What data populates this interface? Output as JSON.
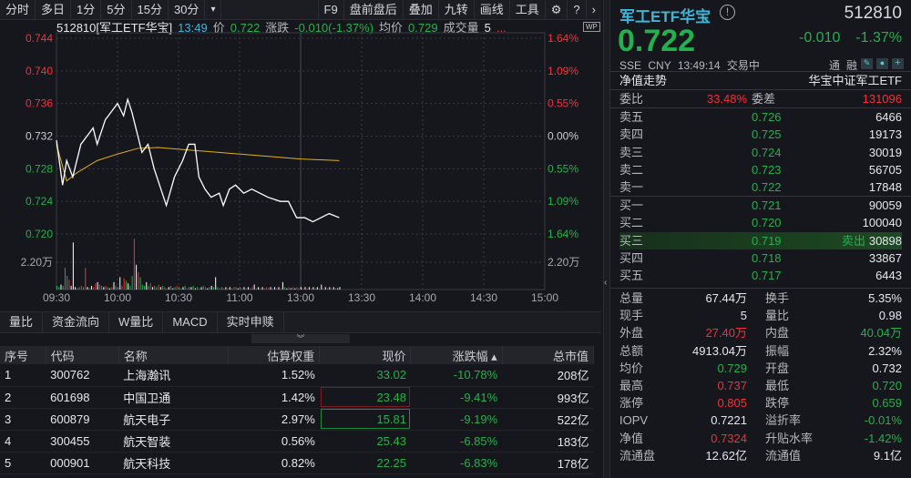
{
  "toolbar": {
    "left": [
      "分时",
      "多日",
      "1分",
      "5分",
      "15分",
      "30分"
    ],
    "dropdown": "▾",
    "right": [
      "F9",
      "盘前盘后",
      "叠加",
      "九转",
      "画线",
      "工具"
    ]
  },
  "infobar": {
    "code_name": "512810[军工ETF华宝]",
    "time": "13:49",
    "price_label": "价",
    "price": "0.722",
    "change_label": "涨跌",
    "change": "-0.010(-1.37%)",
    "avg_label": "均价",
    "avg": "0.729",
    "vol_label": "成交量",
    "vol": "5",
    "more": "...",
    "wp": "WP"
  },
  "chart_data": {
    "type": "line",
    "title": "",
    "xlabel": "",
    "ylabel": "",
    "y_ticks": [
      "0.744",
      "0.740",
      "0.736",
      "0.732",
      "0.728",
      "0.724",
      "0.720"
    ],
    "y_ticks_right": [
      "1.64%",
      "1.09%",
      "0.55%",
      "0.00%",
      "0.55%",
      "1.09%",
      "1.64%"
    ],
    "ylim": [
      0.72,
      0.744
    ],
    "prev_close": 0.732,
    "x_ticks": [
      "09:30",
      "10:00",
      "10:30",
      "11:00",
      "13:00",
      "13:30",
      "14:00",
      "14:30",
      "15:00"
    ],
    "session_minutes": 240,
    "price": {
      "t": [
        0,
        3,
        5,
        8,
        12,
        15,
        18,
        20,
        24,
        27,
        30,
        33,
        35,
        37,
        39,
        40,
        42,
        45,
        48,
        52,
        54,
        58,
        62,
        65,
        68,
        70,
        73,
        76,
        80,
        82,
        85,
        88,
        92,
        96,
        100,
        104,
        110,
        114,
        118,
        122,
        126,
        130,
        134,
        139
      ],
      "v": [
        0.7315,
        0.726,
        0.729,
        0.727,
        0.731,
        0.732,
        0.733,
        0.731,
        0.734,
        0.735,
        0.736,
        0.7345,
        0.7365,
        0.735,
        0.733,
        0.732,
        0.73,
        0.731,
        0.728,
        0.725,
        0.7235,
        0.727,
        0.729,
        0.731,
        0.731,
        0.727,
        0.7255,
        0.7245,
        0.725,
        0.7235,
        0.7255,
        0.726,
        0.725,
        0.7255,
        0.725,
        0.7245,
        0.724,
        0.724,
        0.722,
        0.722,
        0.7215,
        0.722,
        0.7225,
        0.722
      ]
    },
    "avg": {
      "t": [
        0,
        5,
        10,
        20,
        30,
        40,
        50,
        60,
        80,
        100,
        120,
        139
      ],
      "v": [
        0.731,
        0.7265,
        0.7275,
        0.729,
        0.7298,
        0.7305,
        0.7306,
        0.7304,
        0.73,
        0.7296,
        0.7292,
        0.729
      ]
    },
    "volume_label": "2.20万",
    "volume_unit": "万",
    "volume": [
      0.3,
      0.2,
      0.4,
      0.3,
      1.75,
      1.1,
      0.8,
      0.3,
      3.8,
      0.2,
      0.1,
      0.2,
      0.3,
      0.2,
      1.75,
      0.2,
      0.1,
      0.3,
      0.2,
      0.5,
      0.6,
      0.4,
      0.3,
      0.2,
      0.3,
      0.2,
      0.1,
      0.2,
      0.6,
      0.3,
      0.2,
      1.0,
      0.3,
      0.9,
      0.7,
      0.5,
      0.3,
      1.1,
      4.1,
      2.0,
      1.4,
      1.0,
      0.4,
      0.3,
      0.6,
      0.3,
      0.5,
      0.2,
      0.3,
      0.2,
      0.4,
      0.2,
      0.3,
      0.2,
      0.1,
      0.2,
      0.3,
      0.1,
      0.2,
      0.3,
      0.2,
      0.1,
      0.2,
      0.3,
      0.1,
      0.2,
      0.2,
      0.3,
      0.1,
      0.2,
      0.1,
      0.2,
      0.3,
      0.2,
      0.1,
      0.2,
      0.3,
      0.2,
      1.0,
      0.2,
      0.1,
      0.2,
      0.1,
      0.2,
      0.1,
      0.2,
      0.1,
      0.2,
      0.2,
      0.1,
      0.2,
      0.1,
      0.2,
      0.1,
      0.2,
      0.1,
      0.2,
      0.4,
      0.1,
      0.2,
      0.1,
      0.2,
      0.1,
      0.2,
      0.1,
      0.2,
      0.1,
      0.2,
      0.1,
      0.2,
      0.1,
      0.6,
      0.2,
      0.1,
      0.2,
      0.1,
      0.2,
      0.1,
      0.2,
      0.1,
      0.2,
      0.1,
      0.2,
      0.1,
      0.2,
      0.1,
      0.2,
      0.1,
      0.2,
      0.1,
      0.4,
      0.1,
      0.2,
      0.1,
      0.2,
      0.1,
      0.2,
      0.1,
      0.1,
      0.2
    ],
    "volume_dir": "ddfdddufffddudufdfuufudfudfufddfuudfddufudddfdufddufdudfdfduddfdudfdfdufdufdfdfdddufufdudfdufufdufufufdudfufufufdfufufudfufufufdfufufufufdffd"
  },
  "colors": {
    "up": "#f0313c",
    "down": "#22b14c",
    "price_line": "#ffffff",
    "avg_line": "#e0b020"
  },
  "tabs": [
    "量比",
    "资金流向",
    "W量比",
    "MACD",
    "实时申赎"
  ],
  "collapse": "︾",
  "table": {
    "headers": [
      "序号",
      "代码",
      "名称",
      "估算权重",
      "现价",
      "涨跌幅 ▴",
      "总市值"
    ],
    "rows": [
      [
        "1",
        "300762",
        "上海瀚讯",
        "1.52%",
        "33.02",
        "-10.78%",
        "208亿"
      ],
      [
        "2",
        "601698",
        "中国卫通",
        "1.42%",
        "23.48",
        "-9.41%",
        "993亿"
      ],
      [
        "3",
        "600879",
        "航天电子",
        "2.97%",
        "15.81",
        "-9.19%",
        "522亿"
      ],
      [
        "4",
        "300455",
        "航天智装",
        "0.56%",
        "25.43",
        "-6.85%",
        "183亿"
      ],
      [
        "5",
        "000901",
        "航天科技",
        "0.82%",
        "22.25",
        "-6.83%",
        "178亿"
      ]
    ]
  },
  "quote": {
    "name": "军工ETF华宝",
    "code": "512810",
    "price": "0.722",
    "change": "-0.010",
    "pct": "-1.37%",
    "exchange": "SSE",
    "currency": "CNY",
    "time": "13:49:14",
    "status": "交易中",
    "tong": "通",
    "rong": "融",
    "nav_trend": "净值走势",
    "fund_name": "华宝中证军工ETF",
    "weibi_label": "委比",
    "weibi": "33.48%",
    "weicha_label": "委差",
    "weicha": "131096",
    "asks": [
      [
        "卖五",
        "0.726",
        "6466"
      ],
      [
        "卖四",
        "0.725",
        "19173"
      ],
      [
        "卖三",
        "0.724",
        "30019"
      ],
      [
        "卖二",
        "0.723",
        "56705"
      ],
      [
        "卖一",
        "0.722",
        "17848"
      ]
    ],
    "bids": [
      [
        "买一",
        "0.721",
        "90059"
      ],
      [
        "买二",
        "0.720",
        "100040"
      ],
      [
        "买三",
        "0.719",
        "30898"
      ],
      [
        "买四",
        "0.718",
        "33867"
      ],
      [
        "买五",
        "0.717",
        "6443"
      ]
    ],
    "bid_tag": "卖出",
    "stats": [
      [
        "总量",
        "67.44万",
        "white",
        "换手",
        "5.35%",
        "white"
      ],
      [
        "现手",
        "5",
        "white",
        "量比",
        "0.98",
        "white"
      ],
      [
        "外盘",
        "27.40万",
        "red",
        "内盘",
        "40.04万",
        "green"
      ],
      [
        "总额",
        "4913.04万",
        "white",
        "振幅",
        "2.32%",
        "white"
      ],
      [
        "均价",
        "0.729",
        "green",
        "开盘",
        "0.732",
        "white"
      ],
      [
        "最高",
        "0.737",
        "red",
        "最低",
        "0.720",
        "green"
      ],
      [
        "涨停",
        "0.805",
        "red",
        "跌停",
        "0.659",
        "green"
      ],
      [
        "IOPV",
        "0.7221",
        "white",
        "溢折率",
        "-0.01%",
        "green"
      ],
      [
        "净值",
        "0.7324",
        "red",
        "升贴水率",
        "-1.42%",
        "green"
      ],
      [
        "流通盘",
        "12.62亿",
        "white",
        "流通值",
        "9.1亿",
        "white"
      ]
    ]
  }
}
